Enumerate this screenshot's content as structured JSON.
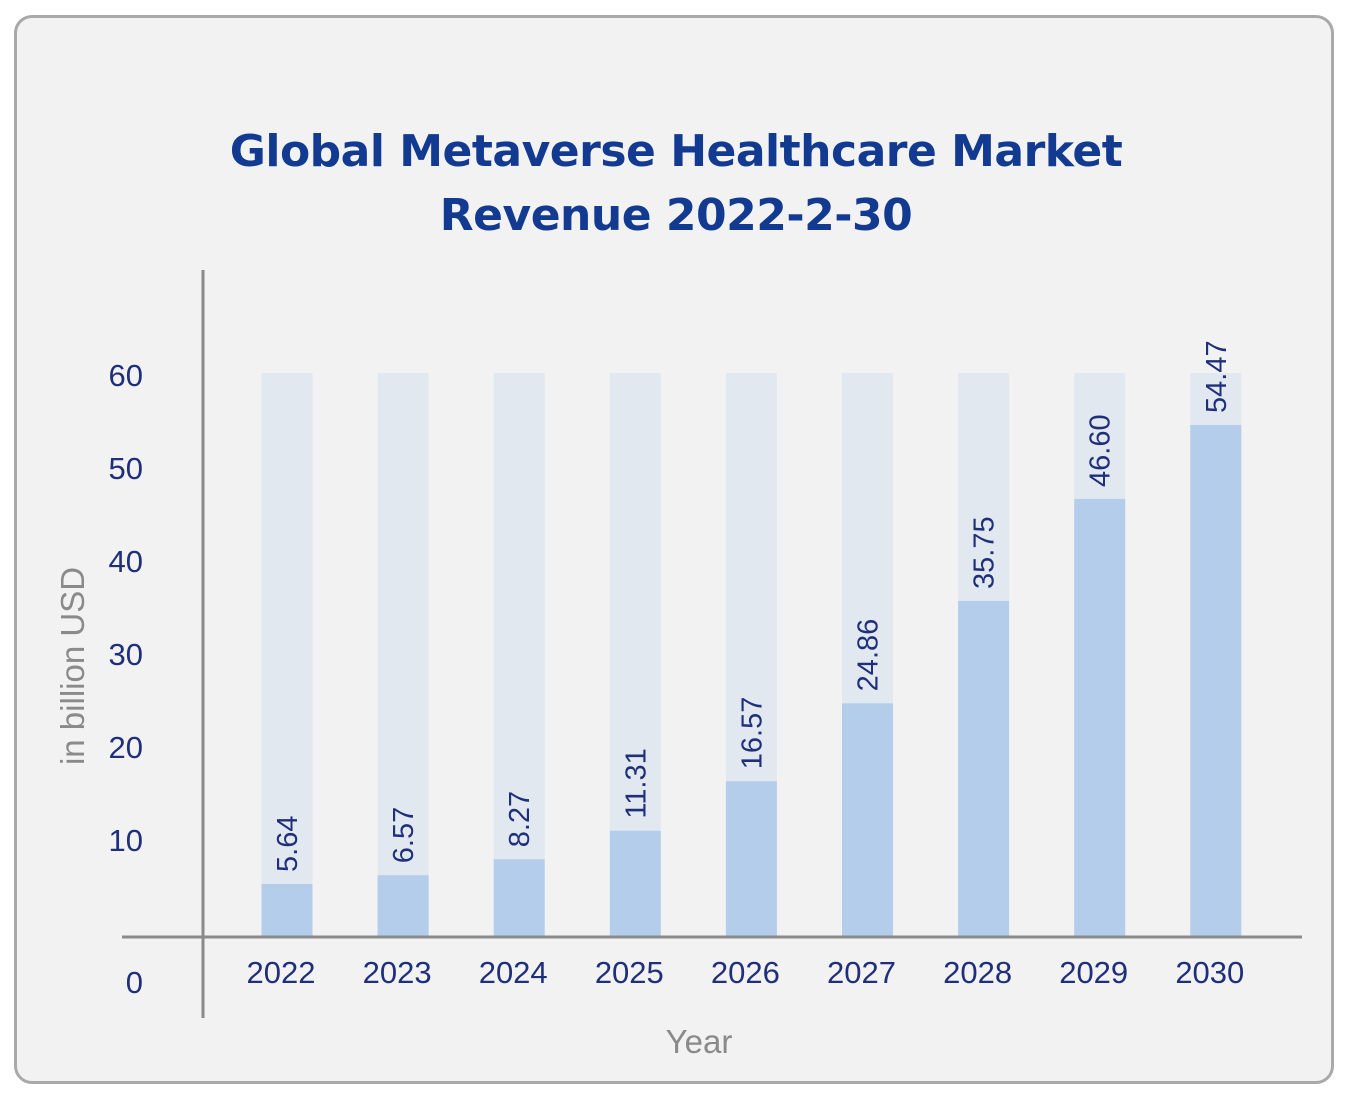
{
  "chart_data": {
    "type": "bar",
    "title_lines": [
      "Global Metaverse Healthcare Market",
      "Revenue 2022-2-30"
    ],
    "xlabel": "Year",
    "ylabel": "in billion USD",
    "categories": [
      "2022",
      "2023",
      "2024",
      "2025",
      "2026",
      "2027",
      "2028",
      "2029",
      "2030"
    ],
    "values": [
      5.64,
      6.57,
      8.27,
      11.31,
      16.57,
      24.86,
      35.75,
      46.6,
      54.47
    ],
    "value_labels": [
      "5.64",
      "6.57",
      "8.27",
      "11.31",
      "16.57",
      "24.86",
      "35.75",
      "46.60",
      "54.47"
    ],
    "yticks": [
      "0",
      "10",
      "20",
      "30",
      "40",
      "50",
      "60"
    ],
    "ylim": [
      0,
      60
    ],
    "grid": false,
    "legend": "none",
    "colors": {
      "bar": "#b4cdeb",
      "bar_track": "#e2e8f0",
      "text": "#1f2f7a",
      "title": "#123a91",
      "axis": "#8a8a8a"
    }
  }
}
